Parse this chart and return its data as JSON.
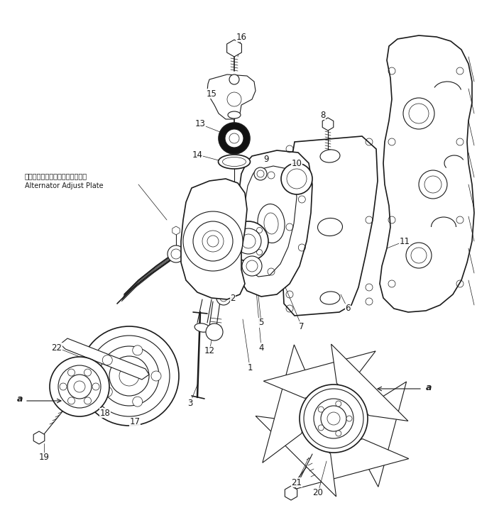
{
  "bg_color": "#ffffff",
  "line_color": "#1a1a1a",
  "fig_width": 7.03,
  "fig_height": 7.33,
  "dpi": 100,
  "annotation_jp": "オルタネータアジャストプレート",
  "annotation_en": "Alternator Adjust Plate"
}
